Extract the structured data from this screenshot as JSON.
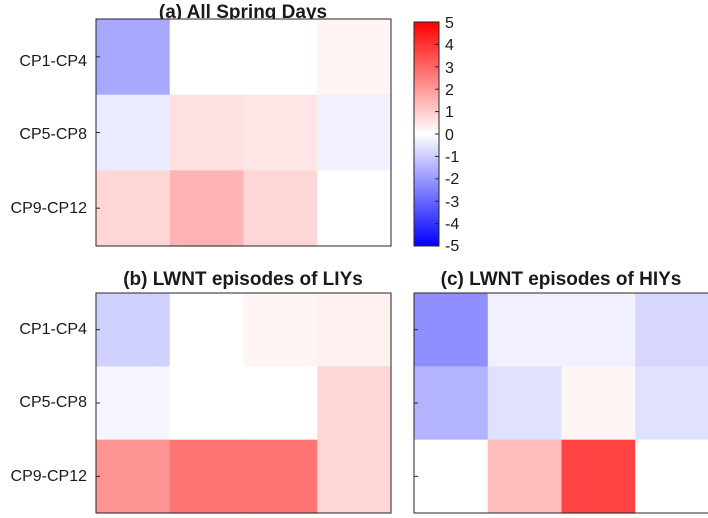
{
  "chart_data": [
    {
      "type": "heatmap",
      "title": "(a) All Spring Days",
      "rows": [
        "CP1-CP4",
        "CP5-CP8",
        "CP9-CP12"
      ],
      "values": [
        [
          -1.7,
          0.0,
          0.0,
          0.2
        ],
        [
          -0.4,
          0.6,
          0.5,
          -0.3
        ],
        [
          0.8,
          1.5,
          0.8,
          0.0
        ]
      ]
    },
    {
      "type": "heatmap",
      "title": "(b) LWNT episodes of LIYs",
      "rows": [
        "CP1-CP4",
        "CP5-CP8",
        "CP9-CP12"
      ],
      "values": [
        [
          -0.9,
          0.0,
          0.2,
          0.3
        ],
        [
          -0.2,
          0.0,
          0.0,
          0.8
        ],
        [
          2.1,
          2.7,
          2.7,
          0.8
        ]
      ]
    },
    {
      "type": "heatmap",
      "title": "(c) LWNT episodes of HIYs",
      "rows": [
        "",
        "",
        ""
      ],
      "values": [
        [
          -2.2,
          -0.3,
          -0.3,
          -0.8
        ],
        [
          -1.5,
          -0.6,
          0.2,
          -0.6
        ],
        [
          0.0,
          1.3,
          3.7,
          0.0
        ]
      ]
    }
  ],
  "colorbar": {
    "min": -5,
    "max": 5,
    "ticks": [
      "5",
      "4",
      "3",
      "2",
      "1",
      "0",
      "-1",
      "-2",
      "-3",
      "-4",
      "-5"
    ],
    "low_color": "#0000ff",
    "mid_color": "#ffffff",
    "high_color": "#ff0000"
  }
}
